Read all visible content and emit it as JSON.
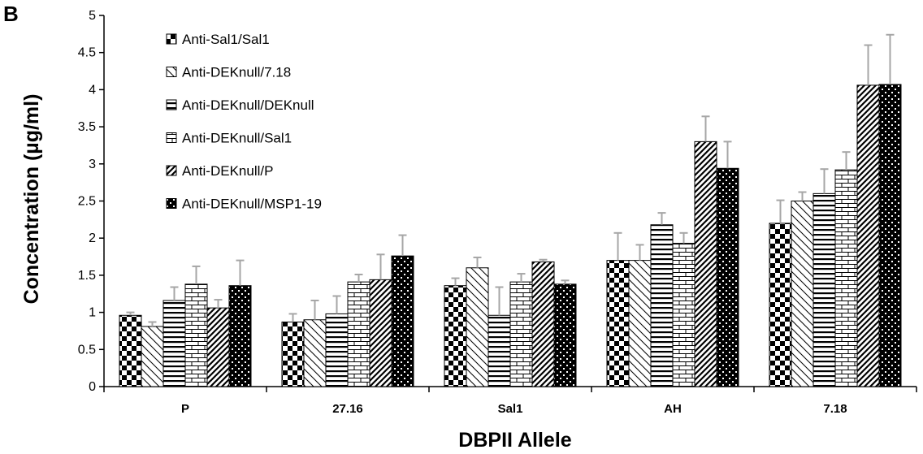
{
  "panel_label": "B",
  "chart_data": {
    "type": "bar",
    "xlabel": "DBPII Allele",
    "ylabel": "Concentration (µg/ml)",
    "ylim": [
      0,
      5
    ],
    "yticks": [
      0,
      0.5,
      1,
      1.5,
      2,
      2.5,
      3,
      3.5,
      4,
      4.5,
      5
    ],
    "ytick_labels": [
      "0",
      "0.5",
      "1",
      "1.5",
      "2",
      "2.5",
      "3",
      "3.5",
      "4",
      "4.5",
      "5"
    ],
    "categories": [
      "P",
      "27.16",
      "Sal1",
      "AH",
      "7.18"
    ],
    "grid": false,
    "legend_position": "top-left",
    "error_bars": "upper",
    "series": [
      {
        "name": "Anti-Sal1/Sal1",
        "pattern": "checker",
        "values": [
          0.96,
          0.87,
          1.36,
          1.7,
          2.2
        ],
        "errors": [
          0.04,
          0.11,
          0.1,
          0.37,
          0.31
        ]
      },
      {
        "name": "Anti-DEKnull/7.18",
        "pattern": "diag-back",
        "values": [
          0.81,
          0.9,
          1.6,
          1.7,
          2.5
        ],
        "errors": [
          0.06,
          0.26,
          0.14,
          0.21,
          0.12
        ]
      },
      {
        "name": "Anti-DEKnull/DEKnull",
        "pattern": "horizontal",
        "values": [
          1.16,
          0.98,
          0.96,
          2.18,
          2.6
        ],
        "errors": [
          0.18,
          0.24,
          0.38,
          0.16,
          0.33
        ]
      },
      {
        "name": "Anti-DEKnull/Sal1",
        "pattern": "brick",
        "values": [
          1.38,
          1.41,
          1.41,
          1.93,
          2.92
        ],
        "errors": [
          0.24,
          0.1,
          0.11,
          0.14,
          0.24
        ]
      },
      {
        "name": "Anti-DEKnull/P",
        "pattern": "diag-forward",
        "values": [
          1.06,
          1.44,
          1.68,
          3.3,
          4.06
        ],
        "errors": [
          0.11,
          0.34,
          0.03,
          0.34,
          0.54
        ]
      },
      {
        "name": "Anti-DEKnull/MSP1-19",
        "pattern": "dark-check",
        "values": [
          1.36,
          1.76,
          1.38,
          2.94,
          4.07
        ],
        "errors": [
          0.34,
          0.28,
          0.05,
          0.36,
          0.67
        ]
      }
    ]
  }
}
